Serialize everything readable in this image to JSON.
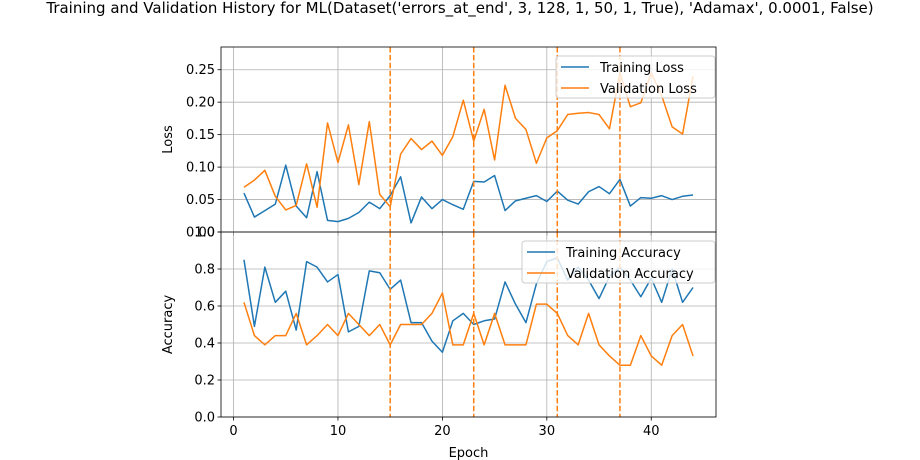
{
  "title": "Training and Validation History for ML(Dataset('errors_at_end', 3, 128, 1, 50, 1, True), 'Adamax', 0.0001, False)",
  "chart_data": [
    {
      "type": "line",
      "ylabel": "Loss",
      "xlabel": "",
      "xlim": [
        -1.2,
        46.2
      ],
      "ylim": [
        0,
        0.285
      ],
      "xticks": [
        0,
        10,
        20,
        30,
        40
      ],
      "yticks": [
        0,
        0.05,
        0.1,
        0.15,
        0.2,
        0.25
      ],
      "ytick_labels": [
        "0.00",
        "0.05",
        "0.10",
        "0.15",
        "0.20",
        "0.25"
      ],
      "grid": true,
      "legend_position": "upper right",
      "vlines": [
        15,
        23,
        31,
        37
      ],
      "x": [
        1,
        2,
        3,
        4,
        5,
        6,
        7,
        8,
        9,
        10,
        11,
        12,
        13,
        14,
        15,
        16,
        17,
        18,
        19,
        20,
        21,
        22,
        23,
        24,
        25,
        26,
        27,
        28,
        29,
        30,
        31,
        32,
        33,
        34,
        35,
        36,
        37,
        38,
        39,
        40,
        41,
        42,
        43,
        44
      ],
      "series": [
        {
          "name": "Training Loss",
          "values": [
            0.06,
            0.023,
            0.033,
            0.043,
            0.103,
            0.04,
            0.022,
            0.093,
            0.018,
            0.016,
            0.021,
            0.03,
            0.046,
            0.036,
            0.056,
            0.085,
            0.014,
            0.054,
            0.036,
            0.05,
            0.042,
            0.035,
            0.078,
            0.077,
            0.087,
            0.033,
            0.048,
            0.052,
            0.056,
            0.047,
            0.063,
            0.049,
            0.043,
            0.062,
            0.07,
            0.059,
            0.081,
            0.04,
            0.053,
            0.052,
            0.056,
            0.05,
            0.055,
            0.057
          ]
        },
        {
          "name": "Validation Loss",
          "values": [
            0.069,
            0.08,
            0.095,
            0.055,
            0.034,
            0.041,
            0.105,
            0.038,
            0.168,
            0.107,
            0.165,
            0.073,
            0.17,
            0.058,
            0.039,
            0.12,
            0.144,
            0.127,
            0.14,
            0.118,
            0.147,
            0.203,
            0.14,
            0.189,
            0.111,
            0.226,
            0.175,
            0.158,
            0.106,
            0.145,
            0.156,
            0.181,
            0.183,
            0.184,
            0.181,
            0.159,
            0.245,
            0.193,
            0.199,
            0.245,
            0.21,
            0.162,
            0.151,
            0.24
          ]
        }
      ]
    },
    {
      "type": "line",
      "ylabel": "Accuracy",
      "xlabel": "Epoch",
      "xlim": [
        -1.2,
        46.2
      ],
      "ylim": [
        0,
        1.0
      ],
      "xticks": [
        0,
        10,
        20,
        30,
        40
      ],
      "yticks": [
        0,
        0.2,
        0.4,
        0.6,
        0.8,
        1.0
      ],
      "ytick_labels": [
        "0.0",
        "0.2",
        "0.4",
        "0.6",
        "0.8",
        "1.0"
      ],
      "grid": true,
      "legend_position": "upper right",
      "vlines": [
        15,
        23,
        31,
        37
      ],
      "x": [
        1,
        2,
        3,
        4,
        5,
        6,
        7,
        8,
        9,
        10,
        11,
        12,
        13,
        14,
        15,
        16,
        17,
        18,
        19,
        20,
        21,
        22,
        23,
        24,
        25,
        26,
        27,
        28,
        29,
        30,
        31,
        32,
        33,
        34,
        35,
        36,
        37,
        38,
        39,
        40,
        41,
        42,
        43,
        44
      ],
      "series": [
        {
          "name": "Training Accuracy",
          "values": [
            0.85,
            0.49,
            0.81,
            0.62,
            0.68,
            0.47,
            0.84,
            0.81,
            0.73,
            0.77,
            0.46,
            0.49,
            0.79,
            0.78,
            0.69,
            0.74,
            0.51,
            0.51,
            0.41,
            0.35,
            0.52,
            0.56,
            0.5,
            0.52,
            0.53,
            0.73,
            0.61,
            0.51,
            0.72,
            0.84,
            0.86,
            0.74,
            0.81,
            0.74,
            0.64,
            0.76,
            0.81,
            0.74,
            0.65,
            0.75,
            0.62,
            0.8,
            0.62,
            0.7
          ]
        },
        {
          "name": "Validation Accuracy",
          "values": [
            0.62,
            0.44,
            0.39,
            0.44,
            0.44,
            0.56,
            0.39,
            0.44,
            0.5,
            0.44,
            0.56,
            0.5,
            0.44,
            0.5,
            0.39,
            0.5,
            0.5,
            0.5,
            0.56,
            0.67,
            0.39,
            0.39,
            0.56,
            0.39,
            0.56,
            0.39,
            0.39,
            0.39,
            0.61,
            0.61,
            0.56,
            0.44,
            0.39,
            0.56,
            0.39,
            0.33,
            0.28,
            0.28,
            0.44,
            0.33,
            0.28,
            0.44,
            0.5,
            0.33
          ]
        }
      ]
    }
  ],
  "colors": {
    "training": "#1f77b4",
    "validation": "#ff7f0e",
    "vline": "#ff7f0e",
    "grid": "#b0b0b0"
  }
}
